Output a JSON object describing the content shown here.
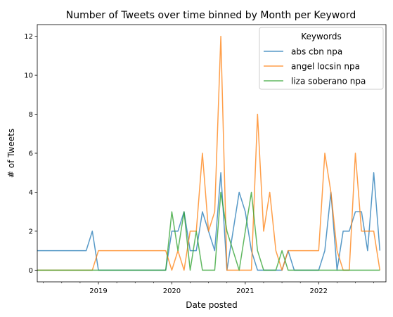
{
  "chart_data": {
    "type": "line",
    "title": "Number of Tweets over time binned by Month per Keyword",
    "xlabel": "Date posted",
    "ylabel": "# of Tweets",
    "x_range": [
      "2018-03",
      "2022-12"
    ],
    "ylim": [
      -0.6,
      12.6
    ],
    "y_ticks": [
      0,
      2,
      4,
      6,
      8,
      10,
      12
    ],
    "x_ticks": [
      {
        "date": "2019-01",
        "label": "2019"
      },
      {
        "date": "2020-01",
        "label": "2020"
      },
      {
        "date": "2021-01",
        "label": "2021"
      },
      {
        "date": "2022-01",
        "label": "2022"
      }
    ],
    "grid": false,
    "legend": {
      "title": "Keywords",
      "position": "upper right"
    },
    "series": [
      {
        "name": "abs cbn npa",
        "color": "#1f77b4",
        "points": [
          [
            "2018-03",
            1
          ],
          [
            "2018-04",
            1
          ],
          [
            "2018-05",
            1
          ],
          [
            "2018-06",
            1
          ],
          [
            "2018-07",
            1
          ],
          [
            "2018-08",
            1
          ],
          [
            "2018-09",
            1
          ],
          [
            "2018-10",
            1
          ],
          [
            "2018-11",
            1
          ],
          [
            "2018-12",
            2
          ],
          [
            "2019-01",
            0
          ],
          [
            "2019-02",
            0
          ],
          [
            "2019-03",
            0
          ],
          [
            "2019-04",
            0
          ],
          [
            "2019-05",
            0
          ],
          [
            "2019-06",
            0
          ],
          [
            "2019-07",
            0
          ],
          [
            "2019-08",
            0
          ],
          [
            "2019-09",
            0
          ],
          [
            "2019-10",
            0
          ],
          [
            "2019-11",
            0
          ],
          [
            "2019-12",
            0
          ],
          [
            "2020-01",
            2
          ],
          [
            "2020-02",
            2
          ],
          [
            "2020-03",
            3
          ],
          [
            "2020-04",
            1
          ],
          [
            "2020-05",
            1
          ],
          [
            "2020-06",
            3
          ],
          [
            "2020-07",
            2
          ],
          [
            "2020-08",
            1
          ],
          [
            "2020-09",
            5
          ],
          [
            "2020-10",
            0
          ],
          [
            "2020-11",
            2
          ],
          [
            "2020-12",
            4
          ],
          [
            "2021-01",
            3
          ],
          [
            "2021-02",
            1
          ],
          [
            "2021-03",
            0
          ],
          [
            "2021-04",
            0
          ],
          [
            "2021-05",
            0
          ],
          [
            "2021-06",
            0
          ],
          [
            "2021-07",
            0
          ],
          [
            "2021-08",
            1
          ],
          [
            "2021-09",
            0
          ],
          [
            "2021-10",
            0
          ],
          [
            "2021-11",
            0
          ],
          [
            "2021-12",
            0
          ],
          [
            "2022-01",
            0
          ],
          [
            "2022-02",
            1
          ],
          [
            "2022-03",
            4
          ],
          [
            "2022-04",
            0
          ],
          [
            "2022-05",
            2
          ],
          [
            "2022-06",
            2
          ],
          [
            "2022-07",
            3
          ],
          [
            "2022-08",
            3
          ],
          [
            "2022-09",
            1
          ],
          [
            "2022-10",
            5
          ],
          [
            "2022-11",
            1
          ]
        ]
      },
      {
        "name": "angel locsin npa",
        "color": "#ff7f0e",
        "points": [
          [
            "2018-03",
            0
          ],
          [
            "2018-04",
            0
          ],
          [
            "2018-05",
            0
          ],
          [
            "2018-06",
            0
          ],
          [
            "2018-07",
            0
          ],
          [
            "2018-08",
            0
          ],
          [
            "2018-09",
            0
          ],
          [
            "2018-10",
            0
          ],
          [
            "2018-11",
            0
          ],
          [
            "2018-12",
            0
          ],
          [
            "2019-01",
            1
          ],
          [
            "2019-02",
            1
          ],
          [
            "2019-03",
            1
          ],
          [
            "2019-04",
            1
          ],
          [
            "2019-05",
            1
          ],
          [
            "2019-06",
            1
          ],
          [
            "2019-07",
            1
          ],
          [
            "2019-08",
            1
          ],
          [
            "2019-09",
            1
          ],
          [
            "2019-10",
            1
          ],
          [
            "2019-11",
            1
          ],
          [
            "2019-12",
            1
          ],
          [
            "2020-01",
            0
          ],
          [
            "2020-02",
            1
          ],
          [
            "2020-03",
            0
          ],
          [
            "2020-04",
            2
          ],
          [
            "2020-05",
            2
          ],
          [
            "2020-06",
            6
          ],
          [
            "2020-07",
            2
          ],
          [
            "2020-08",
            3
          ],
          [
            "2020-09",
            12
          ],
          [
            "2020-10",
            0
          ],
          [
            "2020-11",
            0
          ],
          [
            "2020-12",
            0
          ],
          [
            "2021-01",
            0
          ],
          [
            "2021-02",
            0
          ],
          [
            "2021-03",
            8
          ],
          [
            "2021-04",
            2
          ],
          [
            "2021-05",
            4
          ],
          [
            "2021-06",
            1
          ],
          [
            "2021-07",
            0
          ],
          [
            "2021-08",
            1
          ],
          [
            "2021-09",
            1
          ],
          [
            "2021-10",
            1
          ],
          [
            "2021-11",
            1
          ],
          [
            "2021-12",
            1
          ],
          [
            "2022-01",
            1
          ],
          [
            "2022-02",
            6
          ],
          [
            "2022-03",
            4
          ],
          [
            "2022-04",
            1
          ],
          [
            "2022-05",
            0
          ],
          [
            "2022-06",
            0
          ],
          [
            "2022-07",
            6
          ],
          [
            "2022-08",
            2
          ],
          [
            "2022-09",
            2
          ],
          [
            "2022-10",
            2
          ],
          [
            "2022-11",
            0
          ]
        ]
      },
      {
        "name": "liza soberano npa",
        "color": "#2ca02c",
        "points": [
          [
            "2018-03",
            0
          ],
          [
            "2018-04",
            0
          ],
          [
            "2018-05",
            0
          ],
          [
            "2018-06",
            0
          ],
          [
            "2018-07",
            0
          ],
          [
            "2018-08",
            0
          ],
          [
            "2018-09",
            0
          ],
          [
            "2018-10",
            0
          ],
          [
            "2018-11",
            0
          ],
          [
            "2018-12",
            0
          ],
          [
            "2019-01",
            0
          ],
          [
            "2019-02",
            0
          ],
          [
            "2019-03",
            0
          ],
          [
            "2019-04",
            0
          ],
          [
            "2019-05",
            0
          ],
          [
            "2019-06",
            0
          ],
          [
            "2019-07",
            0
          ],
          [
            "2019-08",
            0
          ],
          [
            "2019-09",
            0
          ],
          [
            "2019-10",
            0
          ],
          [
            "2019-11",
            0
          ],
          [
            "2019-12",
            0
          ],
          [
            "2020-01",
            3
          ],
          [
            "2020-02",
            1
          ],
          [
            "2020-03",
            3
          ],
          [
            "2020-04",
            0
          ],
          [
            "2020-05",
            2
          ],
          [
            "2020-06",
            0
          ],
          [
            "2020-07",
            0
          ],
          [
            "2020-08",
            0
          ],
          [
            "2020-09",
            4
          ],
          [
            "2020-10",
            2
          ],
          [
            "2020-11",
            1
          ],
          [
            "2020-12",
            0
          ],
          [
            "2021-01",
            2
          ],
          [
            "2021-02",
            4
          ],
          [
            "2021-03",
            1
          ],
          [
            "2021-04",
            0
          ],
          [
            "2021-05",
            0
          ],
          [
            "2021-06",
            0
          ],
          [
            "2021-07",
            1
          ],
          [
            "2021-08",
            0
          ],
          [
            "2021-09",
            0
          ],
          [
            "2021-10",
            0
          ],
          [
            "2021-11",
            0
          ],
          [
            "2021-12",
            0
          ],
          [
            "2022-01",
            0
          ],
          [
            "2022-02",
            0
          ],
          [
            "2022-03",
            0
          ],
          [
            "2022-04",
            0
          ],
          [
            "2022-05",
            0
          ],
          [
            "2022-06",
            0
          ],
          [
            "2022-07",
            0
          ],
          [
            "2022-08",
            0
          ],
          [
            "2022-09",
            0
          ],
          [
            "2022-10",
            0
          ],
          [
            "2022-11",
            0
          ]
        ]
      }
    ]
  }
}
